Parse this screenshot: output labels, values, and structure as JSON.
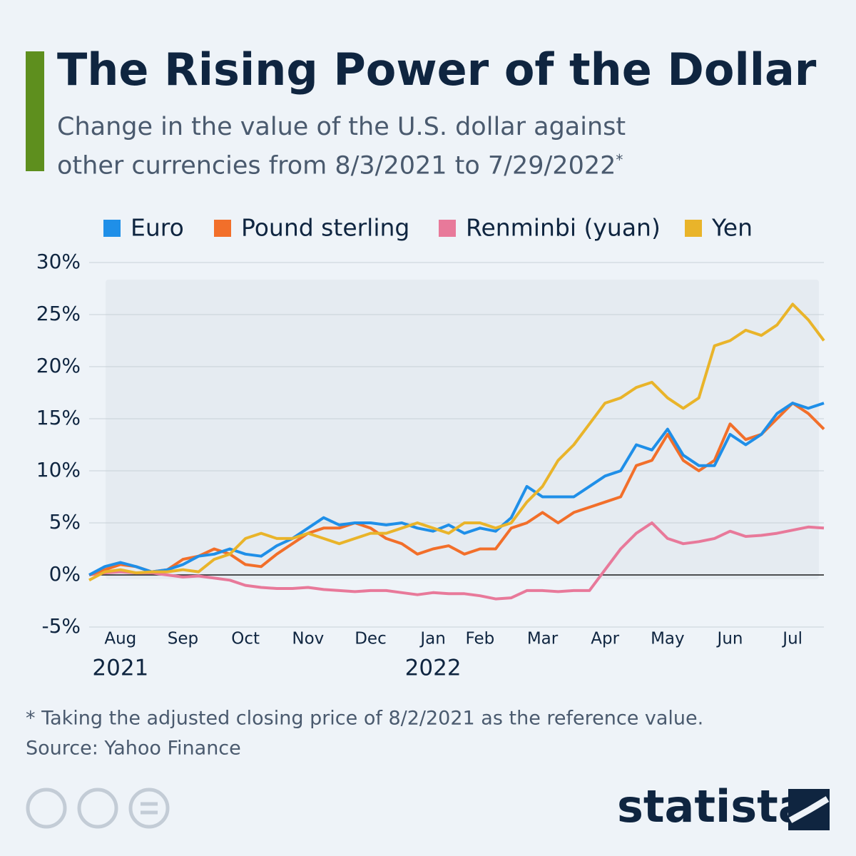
{
  "chart_data": {
    "type": "line",
    "title": "The Rising Power of the Dollar",
    "subtitle": "Change in the value of the U.S. dollar against other currencies from 8/3/2021 to 7/29/2022",
    "subtitle_mark": "*",
    "footnote": "* Taking the adjusted closing price of 8/2/2021 as the reference value.",
    "source": "Source: Yahoo Finance",
    "brand": "statista",
    "years": [
      "2021",
      "2022"
    ],
    "categories": [
      null,
      null,
      "Aug",
      null,
      null,
      null,
      "Sep",
      null,
      null,
      null,
      "Oct",
      null,
      null,
      null,
      "Nov",
      null,
      null,
      null,
      "Dec",
      null,
      null,
      null,
      "Jan",
      null,
      null,
      "Feb",
      null,
      null,
      null,
      "Mar",
      null,
      null,
      null,
      "Apr",
      null,
      null,
      null,
      "May",
      null,
      null,
      null,
      "Jun",
      null,
      null,
      null,
      "Jul",
      null,
      null
    ],
    "series": [
      {
        "name": "Euro",
        "color": "#1f8fe8",
        "values": [
          0,
          0.8,
          1.2,
          0.8,
          0.3,
          0.5,
          1.0,
          1.8,
          2.0,
          2.5,
          2.0,
          1.8,
          2.8,
          3.5,
          4.5,
          5.5,
          4.8,
          5.0,
          5.0,
          4.8,
          5.0,
          4.5,
          4.2,
          4.8,
          4.0,
          4.5,
          4.2,
          5.5,
          8.5,
          7.5,
          7.5,
          7.5,
          8.5,
          9.5,
          10.0,
          12.5,
          12.0,
          14.0,
          11.5,
          10.5,
          10.5,
          13.5,
          12.5,
          13.5,
          15.5,
          16.5,
          16.0,
          16.5
        ]
      },
      {
        "name": "Pound sterling",
        "color": "#f26f2a",
        "values": [
          0,
          0.5,
          1.0,
          0.8,
          0.3,
          0.5,
          1.5,
          1.8,
          2.5,
          2.0,
          1.0,
          0.8,
          2.0,
          3.0,
          4.0,
          4.5,
          4.5,
          5.0,
          4.5,
          3.5,
          3.0,
          2.0,
          2.5,
          2.8,
          2.0,
          2.5,
          2.5,
          4.5,
          5.0,
          6.0,
          5.0,
          6.0,
          6.5,
          7.0,
          7.5,
          10.5,
          11.0,
          13.5,
          11.0,
          10.0,
          11.0,
          14.5,
          13.0,
          13.5,
          15.0,
          16.5,
          15.5,
          14.0
        ]
      },
      {
        "name": "Renminbi (yuan)",
        "color": "#e8799a",
        "values": [
          0,
          0.2,
          0.3,
          0.2,
          0.2,
          0,
          -0.2,
          -0.1,
          -0.3,
          -0.5,
          -1.0,
          -1.2,
          -1.3,
          -1.3,
          -1.2,
          -1.4,
          -1.5,
          -1.6,
          -1.5,
          -1.5,
          -1.7,
          -1.9,
          -1.7,
          -1.8,
          -1.8,
          -2.0,
          -2.3,
          -2.2,
          -1.5,
          -1.5,
          -1.6,
          -1.5,
          -1.5,
          0.5,
          2.5,
          4.0,
          5.0,
          3.5,
          3.0,
          3.2,
          3.5,
          4.2,
          3.7,
          3.8,
          4.0,
          4.3,
          4.6,
          4.5
        ]
      },
      {
        "name": "Yen",
        "color": "#e9b42a",
        "values": [
          -0.5,
          0.3,
          0.5,
          0.2,
          0.3,
          0.3,
          0.5,
          0.3,
          1.5,
          2.0,
          3.5,
          4.0,
          3.5,
          3.5,
          4.0,
          3.5,
          3.0,
          3.5,
          4.0,
          4.0,
          4.5,
          5.0,
          4.5,
          4.0,
          5.0,
          5.0,
          4.5,
          5.0,
          7.0,
          8.5,
          11.0,
          12.5,
          14.5,
          16.5,
          17.0,
          18.0,
          18.5,
          17.0,
          16.0,
          17.0,
          22.0,
          22.5,
          23.5,
          23.0,
          24.0,
          26.0,
          24.5,
          22.5
        ]
      }
    ],
    "ylim": [
      -5,
      30
    ],
    "yticks": [
      {
        "value": -5,
        "label": "-5%"
      },
      {
        "value": 0,
        "label": "0%"
      },
      {
        "value": 5,
        "label": "5%"
      },
      {
        "value": 10,
        "label": "10%"
      },
      {
        "value": 15,
        "label": "15%"
      },
      {
        "value": 20,
        "label": "20%"
      },
      {
        "value": 25,
        "label": "25%"
      },
      {
        "value": 30,
        "label": "30%"
      }
    ],
    "grid": true
  }
}
